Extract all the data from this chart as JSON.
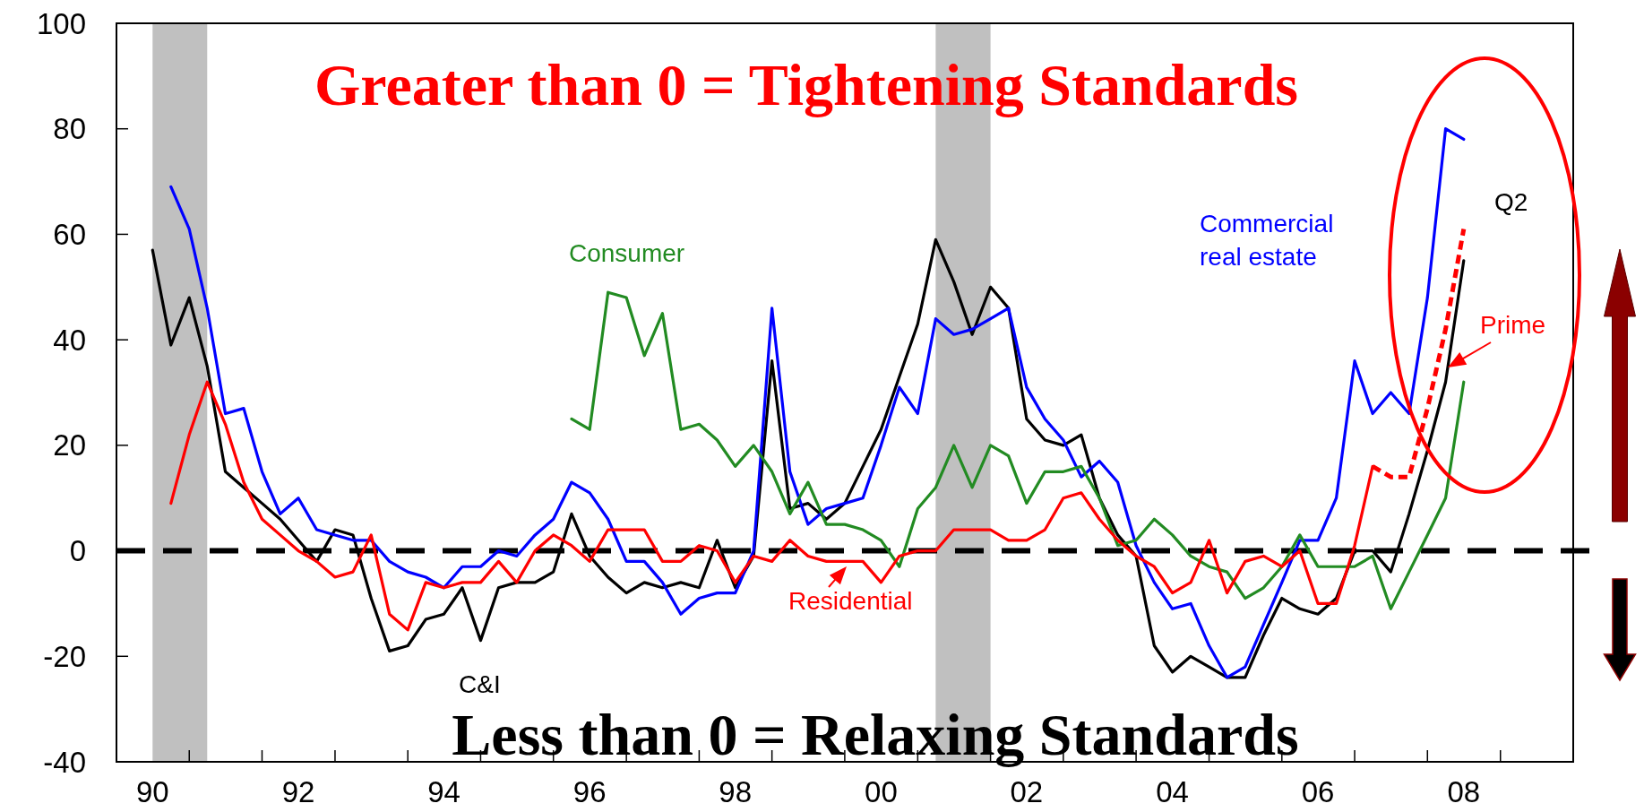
{
  "chart_data": {
    "type": "line",
    "x": [
      "1990-07",
      "1990-10",
      "1991-01",
      "1991-04",
      "1991-07",
      "1991-10",
      "1992-01",
      "1992-04",
      "1992-07",
      "1992-10",
      "1993-01",
      "1993-04",
      "1993-07",
      "1993-10",
      "1994-01",
      "1994-04",
      "1994-07",
      "1994-10",
      "1995-01",
      "1995-04",
      "1995-07",
      "1995-10",
      "1996-01",
      "1996-04",
      "1996-07",
      "1996-10",
      "1997-01",
      "1997-04",
      "1997-07",
      "1997-10",
      "1998-01",
      "1998-04",
      "1998-07",
      "1998-10",
      "1999-01",
      "1999-04",
      "1999-07",
      "1999-10",
      "2000-01",
      "2000-04",
      "2000-07",
      "2000-10",
      "2001-01",
      "2001-04",
      "2001-07",
      "2001-10",
      "2002-01",
      "2002-04",
      "2002-07",
      "2002-10",
      "2003-01",
      "2003-04",
      "2003-07",
      "2003-10",
      "2004-01",
      "2004-04",
      "2004-07",
      "2004-10",
      "2005-01",
      "2005-04",
      "2005-07",
      "2005-10",
      "2006-01",
      "2006-04",
      "2006-07",
      "2006-10",
      "2007-01",
      "2007-04",
      "2007-07",
      "2007-10",
      "2008-01",
      "2008-04",
      "2008-07"
    ],
    "series": [
      {
        "name": "C&I",
        "color": "#000000",
        "values": [
          57,
          39,
          48,
          35,
          15,
          12,
          9,
          6,
          2,
          -2,
          4,
          3,
          -9,
          -19,
          -18,
          -13,
          -12,
          -7,
          -17,
          -7,
          -6,
          -6,
          -4,
          7,
          -1,
          -5,
          -8,
          -6,
          -7,
          -6,
          -7,
          2,
          -7,
          -1,
          36,
          8,
          9,
          6,
          9,
          16,
          23,
          33,
          43,
          59,
          51,
          41,
          50,
          46,
          25,
          21,
          20,
          22,
          10,
          3,
          -1,
          -18,
          -23,
          -20,
          -22,
          -24,
          -24,
          -16,
          -9,
          -11,
          -12,
          -9,
          0,
          0,
          -4,
          7,
          19,
          32,
          55
        ]
      },
      {
        "name": "Commercial real estate",
        "color": "#0000ff",
        "values": [
          null,
          69,
          61,
          46,
          26,
          27,
          15,
          7,
          10,
          4,
          3,
          2,
          2,
          -2,
          -4,
          -5,
          -7,
          -3,
          -3,
          0,
          -1,
          3,
          6,
          13,
          11,
          6,
          -2,
          -2,
          -6,
          -12,
          -9,
          -8,
          -8,
          0,
          46,
          15,
          5,
          8,
          9,
          10,
          20,
          31,
          26,
          44,
          41,
          42,
          44,
          46,
          31,
          25,
          21,
          14,
          17,
          13,
          1,
          -6,
          -11,
          -10,
          -18,
          -24,
          -22,
          -14,
          -6,
          2,
          2,
          10,
          36,
          26,
          30,
          26,
          48,
          80,
          78
        ]
      },
      {
        "name": "Consumer",
        "color": "#228b22",
        "values": [
          null,
          null,
          null,
          null,
          null,
          null,
          null,
          null,
          null,
          null,
          null,
          null,
          null,
          null,
          null,
          null,
          null,
          null,
          null,
          null,
          null,
          null,
          null,
          25,
          23,
          49,
          48,
          37,
          45,
          23,
          24,
          21,
          16,
          20,
          15,
          7,
          13,
          5,
          5,
          4,
          2,
          -3,
          8,
          12,
          20,
          12,
          20,
          18,
          9,
          15,
          15,
          16,
          10,
          1,
          2,
          6,
          3,
          -1,
          -3,
          -4,
          -9,
          -7,
          -3,
          3,
          -3,
          -3,
          -3,
          -1,
          -11,
          -4,
          3,
          10,
          32
        ]
      },
      {
        "name": "Residential",
        "color": "#ff0000",
        "values": [
          null,
          9,
          22,
          32,
          24,
          13,
          6,
          3,
          0,
          -2,
          -5,
          -4,
          3,
          -12,
          -15,
          -6,
          -7,
          -6,
          -6,
          -2,
          -6,
          0,
          3,
          1,
          -2,
          4,
          4,
          4,
          -2,
          -2,
          1,
          0,
          -6,
          -1,
          -2,
          2,
          -1,
          -2,
          -2,
          -2,
          -6,
          -1,
          0,
          0,
          4,
          4,
          4,
          2,
          2,
          4,
          10,
          11,
          6,
          2,
          -1,
          -3,
          -8,
          -6,
          2,
          -8,
          -2,
          -1,
          -3,
          0,
          -10,
          -10,
          1,
          16,
          null,
          null,
          null,
          null,
          null
        ]
      },
      {
        "name": "Prime",
        "color": "#ff0000",
        "line_style": "dashed",
        "values": [
          null,
          null,
          null,
          null,
          null,
          null,
          null,
          null,
          null,
          null,
          null,
          null,
          null,
          null,
          null,
          null,
          null,
          null,
          null,
          null,
          null,
          null,
          null,
          null,
          null,
          null,
          null,
          null,
          null,
          null,
          null,
          null,
          null,
          null,
          null,
          null,
          null,
          null,
          null,
          null,
          null,
          null,
          null,
          null,
          null,
          null,
          null,
          null,
          null,
          null,
          null,
          null,
          null,
          null,
          null,
          null,
          null,
          null,
          null,
          null,
          null,
          null,
          null,
          null,
          null,
          null,
          null,
          16,
          14,
          14,
          27,
          42,
          61
        ]
      }
    ],
    "xlim": [
      "1990-01",
      "2010-01"
    ],
    "xticks": [
      {
        "value": "1990-07",
        "label": "90"
      },
      {
        "value": "1992-07",
        "label": "92"
      },
      {
        "value": "1994-07",
        "label": "94"
      },
      {
        "value": "1996-07",
        "label": "96"
      },
      {
        "value": "1998-07",
        "label": "98"
      },
      {
        "value": "2000-07",
        "label": "00"
      },
      {
        "value": "2002-07",
        "label": "02"
      },
      {
        "value": "2004-07",
        "label": "04"
      },
      {
        "value": "2006-07",
        "label": "06"
      },
      {
        "value": "2008-07",
        "label": "08"
      },
      {
        "value": "1991-01",
        "label": null
      },
      {
        "value": "1992-01",
        "label": null
      },
      {
        "value": "1993-01",
        "label": null
      },
      {
        "value": "1994-01",
        "label": null
      },
      {
        "value": "1995-01",
        "label": null
      },
      {
        "value": "1996-01",
        "label": null
      },
      {
        "value": "1997-01",
        "label": null
      },
      {
        "value": "1998-01",
        "label": null
      },
      {
        "value": "1999-01",
        "label": null
      },
      {
        "value": "2000-01",
        "label": null
      },
      {
        "value": "2001-01",
        "label": null
      },
      {
        "value": "2002-01",
        "label": null
      },
      {
        "value": "2003-01",
        "label": null
      },
      {
        "value": "2004-01",
        "label": null
      },
      {
        "value": "2005-01",
        "label": null
      },
      {
        "value": "2006-01",
        "label": null
      },
      {
        "value": "2007-01",
        "label": null
      },
      {
        "value": "2008-01",
        "label": null
      },
      {
        "value": "2009-01",
        "label": null
      }
    ],
    "ylim": [
      -40,
      100
    ],
    "yticks": [
      -40,
      -20,
      0,
      20,
      40,
      60,
      80,
      100
    ],
    "bands": [
      {
        "axis": "x",
        "from": "1990-07",
        "to": "1991-04",
        "color": "#c0c0c0"
      },
      {
        "axis": "x",
        "from": "2001-04",
        "to": "2002-01",
        "color": "#c0c0c0"
      }
    ],
    "ref_lines": [
      {
        "axis": "y",
        "value": 0,
        "color": "#000000",
        "line_style": "dashed"
      }
    ],
    "annotations": [
      "Greater than 0 = Tightening Standards",
      "Less than 0 = Relaxing Standards",
      "Q2"
    ]
  }
}
